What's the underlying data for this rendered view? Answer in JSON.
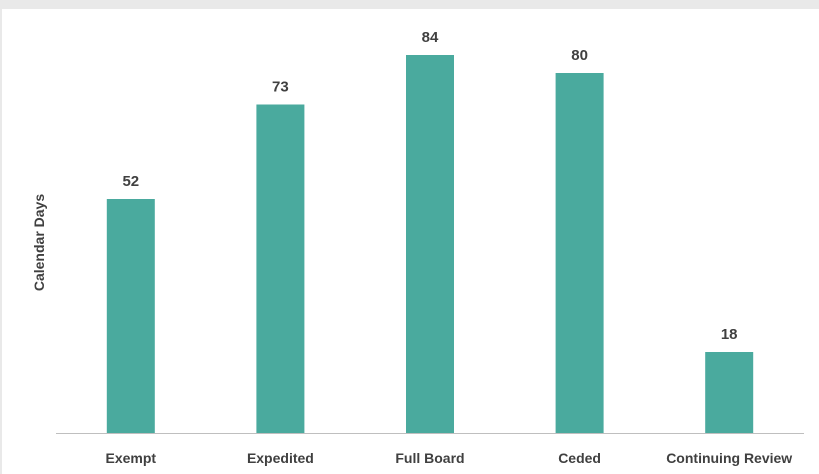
{
  "chart_data": {
    "type": "bar",
    "categories": [
      "Exempt",
      "Expedited",
      "Full Board",
      "Ceded",
      "Continuing Review"
    ],
    "values": [
      52,
      73,
      84,
      80,
      18
    ],
    "title": "",
    "xlabel": "",
    "ylabel": "Calendar Days",
    "ylim": [
      0,
      90
    ],
    "grid": false,
    "show_data_labels": true,
    "colors": {
      "bar": "#4aaa9e",
      "axis": "#bfbfbf",
      "text": "#404040",
      "background": "#ffffff",
      "frame": "#e9e9e9"
    }
  }
}
